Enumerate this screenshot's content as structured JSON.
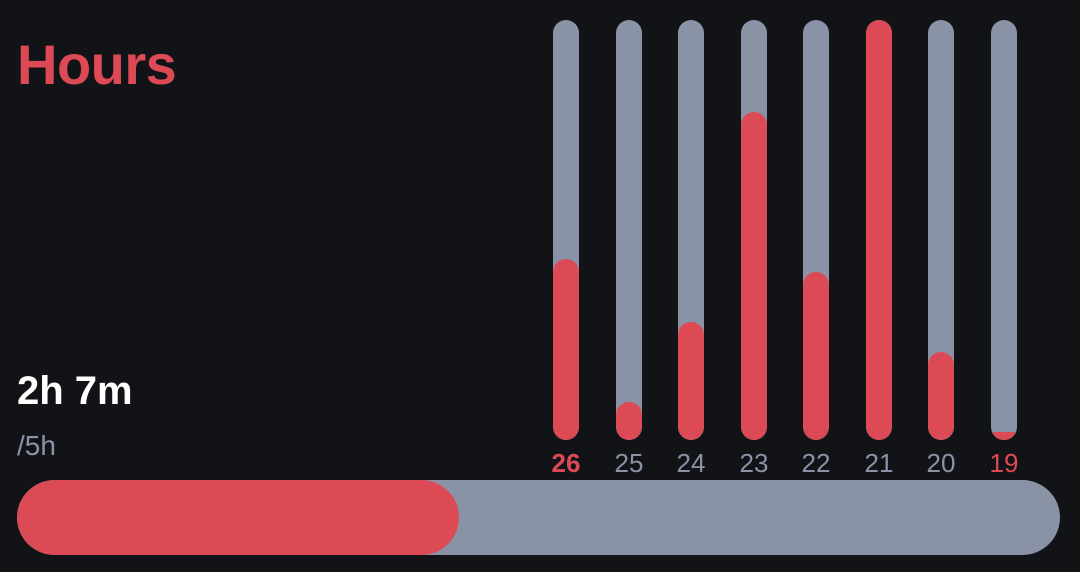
{
  "title": "Hours",
  "summary": {
    "value_label": "2h 7m",
    "goal_label": "/5h",
    "progress_fraction": 0.4233
  },
  "colors": {
    "accent": "#dc4a56",
    "track": "#8a93a6",
    "background": "#121317",
    "text_primary": "#ffffff",
    "text_muted": "#8a93a6"
  },
  "days": [
    {
      "label": "26",
      "fraction": 0.43,
      "highlight": true
    },
    {
      "label": "25",
      "fraction": 0.09,
      "highlight": false
    },
    {
      "label": "24",
      "fraction": 0.28,
      "highlight": false
    },
    {
      "label": "23",
      "fraction": 0.78,
      "highlight": false
    },
    {
      "label": "22",
      "fraction": 0.4,
      "highlight": false
    },
    {
      "label": "21",
      "fraction": 1.0,
      "highlight": false
    },
    {
      "label": "20",
      "fraction": 0.21,
      "highlight": false
    },
    {
      "label": "19",
      "fraction": 0.02,
      "highlight": true
    }
  ]
}
